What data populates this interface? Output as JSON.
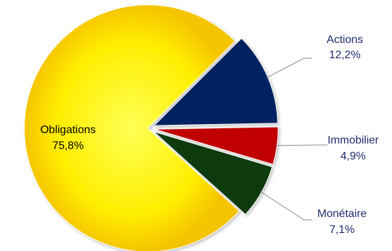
{
  "chart_data": {
    "type": "pie",
    "title": "",
    "slices": [
      {
        "name": "Obligations",
        "value": 75.8,
        "label": "75,8%",
        "color": "#ffee00",
        "exploded": false,
        "label_position": "inside"
      },
      {
        "name": "Actions",
        "value": 12.2,
        "label": "12,2%",
        "color": "#002060",
        "exploded": true,
        "label_position": "outside-top-right"
      },
      {
        "name": "Immobilier",
        "value": 4.9,
        "label": "4,9%",
        "color": "#c00000",
        "exploded": true,
        "label_position": "outside-right"
      },
      {
        "name": "Monétaire",
        "value": 7.1,
        "label": "7,1%",
        "color": "#0a3a0a",
        "exploded": true,
        "label_position": "outside-bottom-right"
      }
    ],
    "legend": "none",
    "grid": false
  }
}
